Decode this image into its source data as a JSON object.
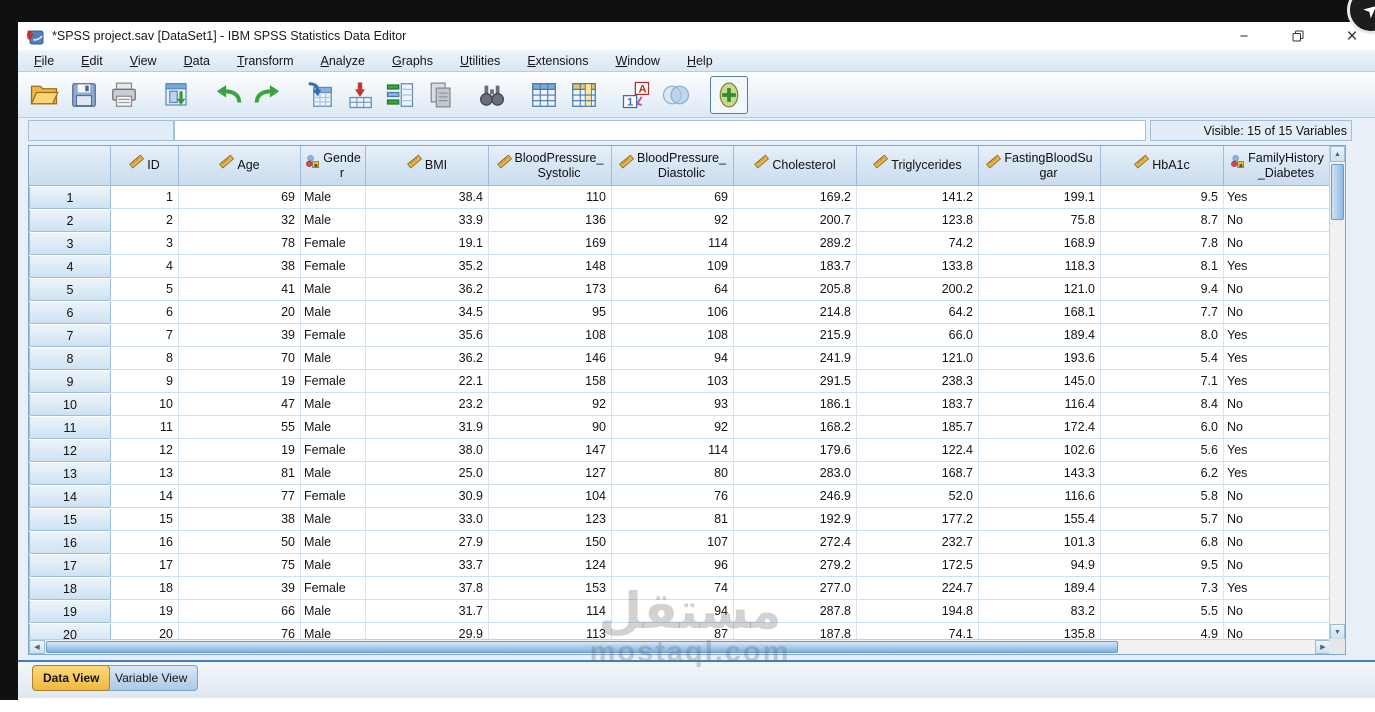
{
  "window": {
    "title": "*SPSS project.sav [DataSet1] - IBM SPSS Statistics Data Editor",
    "controls": {
      "minimize": "−",
      "restore": "restore",
      "close": "×"
    }
  },
  "menu": {
    "items": [
      "File",
      "Edit",
      "View",
      "Data",
      "Transform",
      "Analyze",
      "Graphs",
      "Utilities",
      "Extensions",
      "Window",
      "Help"
    ]
  },
  "toolbar": {
    "buttons": [
      {
        "name": "open-data-button",
        "icon": "open-folder-icon"
      },
      {
        "name": "save-button",
        "icon": "save-icon"
      },
      {
        "name": "print-button",
        "icon": "print-icon"
      },
      {
        "name": "recall-dialogs-button",
        "icon": "recall-dialogs-icon"
      },
      {
        "name": "undo-button",
        "icon": "undo-icon"
      },
      {
        "name": "redo-button",
        "icon": "redo-icon"
      },
      {
        "name": "goto-case-button",
        "icon": "goto-case-icon"
      },
      {
        "name": "insert-cases-button",
        "icon": "insert-cases-icon"
      },
      {
        "name": "goto-variable-button",
        "icon": "goto-variable-icon"
      },
      {
        "name": "variables-button",
        "icon": "variables-icon"
      },
      {
        "name": "find-button",
        "icon": "find-icon"
      },
      {
        "name": "data-grid-button",
        "icon": "grid-blue-icon"
      },
      {
        "name": "insert-variable-button",
        "icon": "grid-gold-icon"
      },
      {
        "name": "value-labels-button",
        "icon": "value-labels-icon"
      },
      {
        "name": "split-file-button",
        "icon": "venn-icon"
      },
      {
        "name": "select-cases-button",
        "icon": "select-cases-icon"
      }
    ]
  },
  "reference_bar": {
    "cell_name": "",
    "cell_value": "",
    "visible_label": "Visible: 15 of 15 Variables"
  },
  "grid": {
    "columns": [
      {
        "label": "ID",
        "measure": "scale",
        "align": "right"
      },
      {
        "label": "Age",
        "measure": "scale",
        "align": "right"
      },
      {
        "label": "Gende\nr",
        "measure": "nominal",
        "align": "left"
      },
      {
        "label": "BMI",
        "measure": "scale",
        "align": "right"
      },
      {
        "label": "BloodPressure_\nSystolic",
        "measure": "scale",
        "align": "right"
      },
      {
        "label": "BloodPressure_\nDiastolic",
        "measure": "scale",
        "align": "right"
      },
      {
        "label": "Cholesterol",
        "measure": "scale",
        "align": "right"
      },
      {
        "label": "Triglycerides",
        "measure": "scale",
        "align": "right"
      },
      {
        "label": "FastingBloodSu\ngar",
        "measure": "scale",
        "align": "right"
      },
      {
        "label": "HbA1c",
        "measure": "scale",
        "align": "right"
      },
      {
        "label": "FamilyHistory\n_Diabetes",
        "measure": "nominal",
        "align": "left"
      }
    ],
    "row_numbers": [
      1,
      2,
      3,
      4,
      5,
      6,
      7,
      8,
      9,
      10,
      11,
      12,
      13,
      14,
      15,
      16,
      17,
      18,
      19,
      20
    ],
    "rows": [
      [
        "1",
        "69",
        "Male",
        "38.4",
        "110",
        "69",
        "169.2",
        "141.2",
        "199.1",
        "9.5",
        "Yes"
      ],
      [
        "2",
        "32",
        "Male",
        "33.9",
        "136",
        "92",
        "200.7",
        "123.8",
        "75.8",
        "8.7",
        "No"
      ],
      [
        "3",
        "78",
        "Female",
        "19.1",
        "169",
        "114",
        "289.2",
        "74.2",
        "168.9",
        "7.8",
        "No"
      ],
      [
        "4",
        "38",
        "Female",
        "35.2",
        "148",
        "109",
        "183.7",
        "133.8",
        "118.3",
        "8.1",
        "Yes"
      ],
      [
        "5",
        "41",
        "Male",
        "36.2",
        "173",
        "64",
        "205.8",
        "200.2",
        "121.0",
        "9.4",
        "No"
      ],
      [
        "6",
        "20",
        "Male",
        "34.5",
        "95",
        "106",
        "214.8",
        "64.2",
        "168.1",
        "7.7",
        "No"
      ],
      [
        "7",
        "39",
        "Female",
        "35.6",
        "108",
        "108",
        "215.9",
        "66.0",
        "189.4",
        "8.0",
        "Yes"
      ],
      [
        "8",
        "70",
        "Male",
        "36.2",
        "146",
        "94",
        "241.9",
        "121.0",
        "193.6",
        "5.4",
        "Yes"
      ],
      [
        "9",
        "19",
        "Female",
        "22.1",
        "158",
        "103",
        "291.5",
        "238.3",
        "145.0",
        "7.1",
        "Yes"
      ],
      [
        "10",
        "47",
        "Male",
        "23.2",
        "92",
        "93",
        "186.1",
        "183.7",
        "116.4",
        "8.4",
        "No"
      ],
      [
        "11",
        "55",
        "Male",
        "31.9",
        "90",
        "92",
        "168.2",
        "185.7",
        "172.4",
        "6.0",
        "No"
      ],
      [
        "12",
        "19",
        "Female",
        "38.0",
        "147",
        "114",
        "179.6",
        "122.4",
        "102.6",
        "5.6",
        "Yes"
      ],
      [
        "13",
        "81",
        "Male",
        "25.0",
        "127",
        "80",
        "283.0",
        "168.7",
        "143.3",
        "6.2",
        "Yes"
      ],
      [
        "14",
        "77",
        "Female",
        "30.9",
        "104",
        "76",
        "246.9",
        "52.0",
        "116.6",
        "5.8",
        "No"
      ],
      [
        "15",
        "38",
        "Male",
        "33.0",
        "123",
        "81",
        "192.9",
        "177.2",
        "155.4",
        "5.7",
        "No"
      ],
      [
        "16",
        "50",
        "Male",
        "27.9",
        "150",
        "107",
        "272.4",
        "232.7",
        "101.3",
        "6.8",
        "No"
      ],
      [
        "17",
        "75",
        "Male",
        "33.7",
        "124",
        "96",
        "279.2",
        "172.5",
        "94.9",
        "9.5",
        "No"
      ],
      [
        "18",
        "39",
        "Female",
        "37.8",
        "153",
        "74",
        "277.0",
        "224.7",
        "189.4",
        "7.3",
        "Yes"
      ],
      [
        "19",
        "66",
        "Male",
        "31.7",
        "114",
        "94",
        "287.8",
        "194.8",
        "83.2",
        "5.5",
        "No"
      ],
      [
        "20",
        "76",
        "Male",
        "29.9",
        "113",
        "87",
        "187.8",
        "74.1",
        "135.8",
        "4.9",
        "No"
      ]
    ]
  },
  "tabs": {
    "items": [
      {
        "label": "Data View",
        "active": true
      },
      {
        "label": "Variable View",
        "active": false
      }
    ]
  },
  "watermark": {
    "line1": "مستقل",
    "line2": "mostaql.com"
  },
  "colors": {
    "menubar_bg": "#dce9f5",
    "header_bg": "#d5e5f4",
    "grid_line": "#cfe0f0",
    "active_tab": "#f2c14d",
    "inactive_tab": "#b9d3ec",
    "scroll_thumb": "#8fb9e4",
    "accent_blue": "#3f7fbf"
  }
}
